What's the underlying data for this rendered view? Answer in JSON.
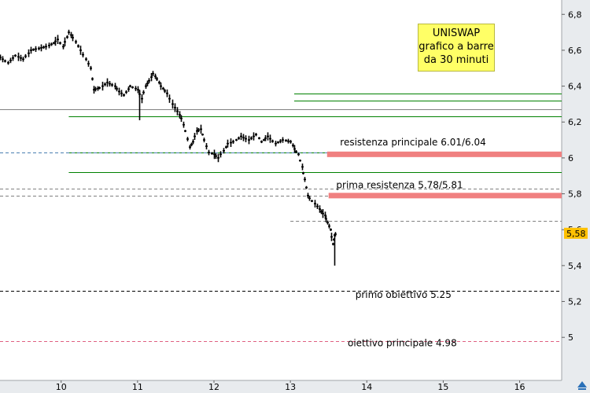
{
  "chart_data": {
    "type": "bar",
    "subtype": "ohlc-price-bars",
    "title_lines": [
      "UNISWAP",
      "grafico a barre",
      "da 30 minuti"
    ],
    "x_ticks": [
      "10",
      "11",
      "12",
      "13",
      "14",
      "15",
      "16"
    ],
    "y_ticks": [
      "6,8",
      "6,6",
      "6,4",
      "6,2",
      "6",
      "5,8",
      "5,6",
      "5,4",
      "5,2",
      "5"
    ],
    "ylim": [
      4.76,
      6.88
    ],
    "xlim": [
      9.2,
      16.55
    ],
    "last_price": 5.58,
    "last_price_label": "5,58",
    "price_path": [
      [
        9.2,
        6.56
      ],
      [
        9.3,
        6.53
      ],
      [
        9.4,
        6.57
      ],
      [
        9.5,
        6.55
      ],
      [
        9.6,
        6.6
      ],
      [
        9.7,
        6.61
      ],
      [
        9.8,
        6.62
      ],
      [
        9.9,
        6.64
      ],
      [
        9.95,
        6.66
      ],
      [
        10.02,
        6.62
      ],
      [
        10.1,
        6.7
      ],
      [
        10.15,
        6.67
      ],
      [
        10.25,
        6.6
      ],
      [
        10.32,
        6.55
      ],
      [
        10.38,
        6.5
      ],
      [
        10.42,
        6.38
      ],
      [
        10.5,
        6.39
      ],
      [
        10.6,
        6.42
      ],
      [
        10.7,
        6.4
      ],
      [
        10.75,
        6.37
      ],
      [
        10.82,
        6.35
      ],
      [
        10.9,
        6.4
      ],
      [
        11.0,
        6.38
      ],
      [
        11.05,
        6.33
      ],
      [
        11.1,
        6.4
      ],
      [
        11.15,
        6.43
      ],
      [
        11.2,
        6.47
      ],
      [
        11.25,
        6.44
      ],
      [
        11.3,
        6.4
      ],
      [
        11.38,
        6.36
      ],
      [
        11.45,
        6.3
      ],
      [
        11.52,
        6.26
      ],
      [
        11.57,
        6.22
      ],
      [
        11.62,
        6.15
      ],
      [
        11.68,
        6.06
      ],
      [
        11.72,
        6.09
      ],
      [
        11.77,
        6.15
      ],
      [
        11.82,
        6.16
      ],
      [
        11.87,
        6.1
      ],
      [
        11.93,
        6.03
      ],
      [
        12.0,
        6.02
      ],
      [
        12.05,
        6.0
      ],
      [
        12.12,
        6.04
      ],
      [
        12.18,
        6.08
      ],
      [
        12.25,
        6.09
      ],
      [
        12.35,
        6.12
      ],
      [
        12.45,
        6.1
      ],
      [
        12.55,
        6.13
      ],
      [
        12.62,
        6.09
      ],
      [
        12.7,
        6.12
      ],
      [
        12.8,
        6.08
      ],
      [
        12.9,
        6.1
      ],
      [
        13.0,
        6.09
      ],
      [
        13.05,
        6.05
      ],
      [
        13.1,
        6.02
      ],
      [
        13.15,
        5.95
      ],
      [
        13.18,
        5.88
      ],
      [
        13.22,
        5.79
      ],
      [
        13.28,
        5.76
      ],
      [
        13.35,
        5.73
      ],
      [
        13.4,
        5.7
      ],
      [
        13.45,
        5.68
      ],
      [
        13.48,
        5.64
      ],
      [
        13.52,
        5.6
      ],
      [
        13.55,
        5.52
      ],
      [
        13.58,
        5.57
      ],
      [
        13.6,
        5.58
      ]
    ],
    "spike_lows": [
      [
        11.02,
        6.21
      ],
      [
        13.57,
        5.4
      ]
    ],
    "lines": [
      {
        "kind": "support-resistance",
        "value": 6.36,
        "color": "#008000",
        "style": "solid",
        "x_start": 13.05
      },
      {
        "kind": "support-resistance",
        "value": 6.32,
        "color": "#008000",
        "style": "solid",
        "x_start": 13.05
      },
      {
        "kind": "support-resistance",
        "value": 6.23,
        "color": "#008000",
        "style": "solid",
        "x_start": 10.1
      },
      {
        "kind": "support-resistance",
        "value": 6.03,
        "color": "#008000",
        "style": "solid",
        "x_start": 10.1
      },
      {
        "kind": "support-resistance",
        "value": 5.92,
        "color": "#008000",
        "style": "solid",
        "x_start": 10.1
      },
      {
        "kind": "previous-level",
        "value": 6.27,
        "color": "#808080",
        "style": "solid",
        "x_start": 9.2
      },
      {
        "kind": "previous-level",
        "value": 6.03,
        "color": "#4a7fb0",
        "style": "dashed",
        "x_start": 9.2
      },
      {
        "kind": "previous-level",
        "value": 5.83,
        "color": "#808080",
        "style": "dashed",
        "x_start": 9.2
      },
      {
        "kind": "previous-level",
        "value": 5.79,
        "color": "#808080",
        "style": "dashed",
        "x_start": 9.2
      },
      {
        "kind": "previous-level",
        "value": 5.65,
        "color": "#808080",
        "style": "dashed",
        "x_start": 13.0
      },
      {
        "kind": "target",
        "value": 5.26,
        "color": "#000000",
        "style": "dashed",
        "x_start": 9.2
      },
      {
        "kind": "target",
        "value": 4.98,
        "color": "#e06080",
        "style": "dashed",
        "x_start": 9.2
      }
    ],
    "zones": [
      {
        "value": 6.02,
        "color": "#f08080",
        "x_start": 13.48
      },
      {
        "value": 5.79,
        "color": "#f08080",
        "x_start": 13.5
      }
    ],
    "annotations": [
      {
        "text": "resistenza principale 6.01/6.04",
        "x": 13.65,
        "y": 6.07
      },
      {
        "text": "prima resistenza 5.78/5.81",
        "x": 13.6,
        "y": 5.83
      },
      {
        "text": "primo obiettivo 5.25",
        "x": 13.85,
        "y": 5.22
      },
      {
        "text": "oiettivo principale 4.98",
        "x": 13.75,
        "y": 4.95
      }
    ],
    "colors": {
      "price": "#000000",
      "axis_bg": "#e8ebee",
      "last_price_badge": "#ffc000"
    }
  }
}
